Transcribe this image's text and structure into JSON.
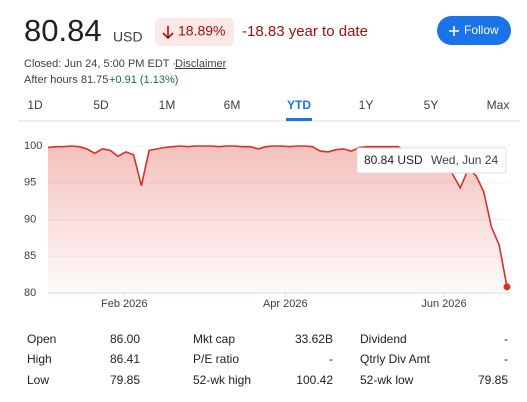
{
  "header": {
    "price": "80.84",
    "currency": "USD",
    "change_pct": "18.89%",
    "ytd_change": "-18.83 year to date",
    "follow": "Follow",
    "closed": "Closed: Jun 24, 5:00 PM EDT ·",
    "disclaimer": "Disclaimer",
    "after_hours": "After hours 81.75",
    "after_hours_change": "+0.91 (1.13%)"
  },
  "tabs": [
    "1D",
    "5D",
    "1M",
    "6M",
    "YTD",
    "1Y",
    "5Y",
    "Max"
  ],
  "selected_tab": "YTD",
  "chart_data": {
    "type": "line",
    "color": "#d93025",
    "grid": true,
    "xlim": [
      0,
      59
    ],
    "xticks": [
      {
        "value": 9.8,
        "label": "Feb 2026"
      },
      {
        "value": 30.5,
        "label": "Apr 2026"
      },
      {
        "value": 50.9,
        "label": "Jun 2026"
      }
    ],
    "ylim": [
      80,
      100
    ],
    "yticks": [
      80,
      85,
      90,
      95,
      100
    ],
    "values": [
      99.8,
      99.9,
      99.9,
      100,
      99.9,
      99.6,
      99.0,
      99.6,
      99.4,
      98.6,
      99.2,
      98.8,
      94.6,
      99.4,
      99.6,
      99.8,
      99.9,
      100,
      99.9,
      100,
      100,
      100,
      99.9,
      100,
      100,
      99.9,
      99.9,
      99.6,
      99.9,
      100,
      100,
      99.9,
      100,
      100,
      99.9,
      99.3,
      99.2,
      99.5,
      99.6,
      99.3,
      99.8,
      99.9,
      99.9,
      99.9,
      99.9,
      99.9,
      99.3,
      99.5,
      99.0,
      98.6,
      98.0,
      97.5,
      96.2,
      94.3,
      96.8,
      96.0,
      93.8,
      89.0,
      86.5,
      80.84
    ],
    "tooltip": {
      "price": "80.84 USD",
      "date": "Wed, Jun 24"
    }
  },
  "stats": [
    [
      [
        "Open",
        "86.00"
      ],
      [
        "Mkt cap",
        "33.62B"
      ],
      [
        "Dividend",
        "-"
      ]
    ],
    [
      [
        "High",
        "86.41"
      ],
      [
        "P/E ratio",
        "-"
      ],
      [
        "Qtrly Div Amt",
        "-"
      ]
    ],
    [
      [
        "Low",
        "79.85"
      ],
      [
        "52-wk high",
        "100.42"
      ],
      [
        "52-wk low",
        "79.85"
      ]
    ]
  ]
}
